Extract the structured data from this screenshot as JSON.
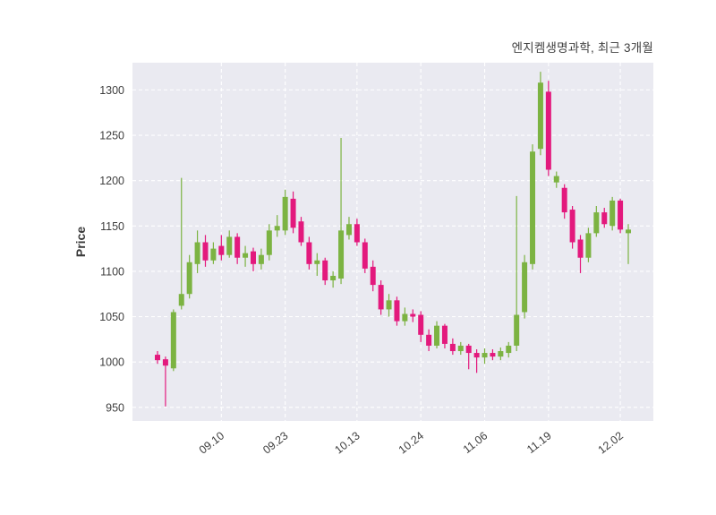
{
  "chart_data": {
    "type": "candlestick",
    "title": "엔지켐생명과학, 최근 3개월",
    "ylabel": "Price",
    "ylim": [
      935,
      1330
    ],
    "y_ticks": [
      950,
      1000,
      1050,
      1100,
      1150,
      1200,
      1250,
      1300
    ],
    "x_ticks": [
      {
        "index": 8,
        "label": "09.10"
      },
      {
        "index": 16,
        "label": "09.23"
      },
      {
        "index": 25,
        "label": "10.13"
      },
      {
        "index": 33,
        "label": "10.24"
      },
      {
        "index": 41,
        "label": "11.06"
      },
      {
        "index": 49,
        "label": "11.19"
      },
      {
        "index": 58,
        "label": "12.02"
      }
    ],
    "grid": "dashed-white",
    "legend": "none",
    "colors": {
      "up": "#7cb342",
      "down": "#e3197d",
      "plot_bg": "#eaeaf1",
      "grid": "#ffffff",
      "text": "#3f3f3f"
    },
    "ohlc_order": [
      "open",
      "high",
      "low",
      "close"
    ],
    "candles": [
      [
        1008,
        1012,
        998,
        1002
      ],
      [
        1003,
        1006,
        951,
        996
      ],
      [
        993,
        1058,
        990,
        1055
      ],
      [
        1062,
        1203,
        1058,
        1075
      ],
      [
        1075,
        1118,
        1070,
        1110
      ],
      [
        1108,
        1145,
        1098,
        1132
      ],
      [
        1132,
        1140,
        1105,
        1112
      ],
      [
        1112,
        1132,
        1108,
        1125
      ],
      [
        1128,
        1140,
        1112,
        1118
      ],
      [
        1118,
        1145,
        1115,
        1138
      ],
      [
        1138,
        1142,
        1108,
        1115
      ],
      [
        1115,
        1128,
        1105,
        1120
      ],
      [
        1122,
        1126,
        1100,
        1108
      ],
      [
        1108,
        1125,
        1102,
        1118
      ],
      [
        1118,
        1152,
        1112,
        1145
      ],
      [
        1145,
        1162,
        1138,
        1150
      ],
      [
        1145,
        1190,
        1140,
        1182
      ],
      [
        1180,
        1188,
        1142,
        1148
      ],
      [
        1155,
        1160,
        1128,
        1132
      ],
      [
        1132,
        1138,
        1102,
        1108
      ],
      [
        1108,
        1120,
        1095,
        1112
      ],
      [
        1112,
        1115,
        1085,
        1090
      ],
      [
        1090,
        1100,
        1082,
        1095
      ],
      [
        1092,
        1247,
        1086,
        1145
      ],
      [
        1140,
        1160,
        1135,
        1152
      ],
      [
        1152,
        1158,
        1128,
        1132
      ],
      [
        1132,
        1136,
        1098,
        1103
      ],
      [
        1105,
        1112,
        1078,
        1085
      ],
      [
        1085,
        1090,
        1052,
        1058
      ],
      [
        1058,
        1075,
        1050,
        1068
      ],
      [
        1068,
        1072,
        1040,
        1045
      ],
      [
        1045,
        1060,
        1040,
        1053
      ],
      [
        1053,
        1058,
        1044,
        1050
      ],
      [
        1052,
        1056,
        1022,
        1030
      ],
      [
        1030,
        1036,
        1012,
        1018
      ],
      [
        1018,
        1045,
        1015,
        1040
      ],
      [
        1040,
        1042,
        1015,
        1020
      ],
      [
        1020,
        1026,
        1008,
        1012
      ],
      [
        1012,
        1022,
        1008,
        1018
      ],
      [
        1018,
        1020,
        992,
        1010
      ],
      [
        1010,
        1014,
        988,
        1005
      ],
      [
        1005,
        1015,
        998,
        1010
      ],
      [
        1010,
        1014,
        1002,
        1006
      ],
      [
        1006,
        1016,
        1002,
        1012
      ],
      [
        1010,
        1022,
        1005,
        1018
      ],
      [
        1018,
        1183,
        1012,
        1052
      ],
      [
        1055,
        1118,
        1048,
        1110
      ],
      [
        1108,
        1240,
        1102,
        1232
      ],
      [
        1235,
        1320,
        1228,
        1308
      ],
      [
        1298,
        1310,
        1205,
        1212
      ],
      [
        1198,
        1210,
        1192,
        1205
      ],
      [
        1192,
        1196,
        1158,
        1165
      ],
      [
        1168,
        1172,
        1125,
        1132
      ],
      [
        1135,
        1140,
        1098,
        1115
      ],
      [
        1115,
        1148,
        1110,
        1142
      ],
      [
        1142,
        1172,
        1138,
        1165
      ],
      [
        1165,
        1170,
        1148,
        1152
      ],
      [
        1150,
        1182,
        1145,
        1178
      ],
      [
        1178,
        1180,
        1142,
        1146
      ],
      [
        1142,
        1152,
        1108,
        1146
      ]
    ]
  }
}
